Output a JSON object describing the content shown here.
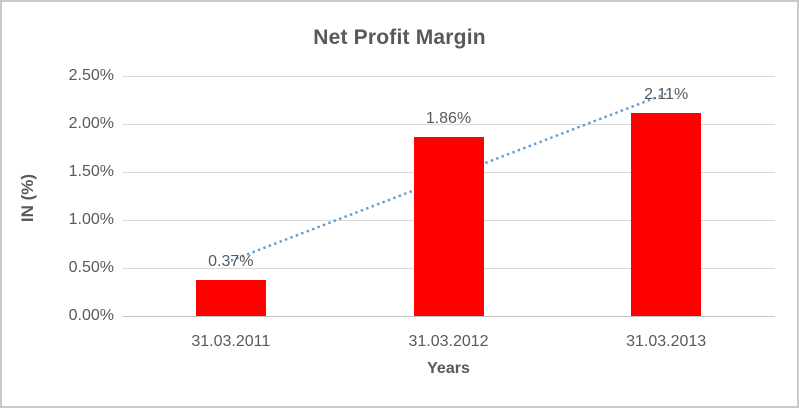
{
  "chart_data": {
    "type": "bar",
    "title": "Net Profit Margin",
    "xlabel": "Years",
    "ylabel": "IN (%)",
    "categories": [
      "31.03.2011",
      "31.03.2012",
      "31.03.2013"
    ],
    "series": [
      {
        "name": "Net Profit Margin",
        "values": [
          0.37,
          1.86,
          2.11
        ],
        "data_labels": [
          "0.37%",
          "1.86%",
          "2.11%"
        ]
      }
    ],
    "ylim": [
      0,
      2.5
    ],
    "ytick_values": [
      0,
      0.5,
      1.0,
      1.5,
      2.0,
      2.5
    ],
    "ytick_labels": [
      "0.00%",
      "0.50%",
      "1.00%",
      "1.50%",
      "2.00%",
      "2.50%"
    ],
    "grid": true,
    "legend": "none",
    "trendline": {
      "type": "linear",
      "style": "dotted"
    },
    "colors": {
      "bar": "#ff0000",
      "trendline": "#5b9bd5",
      "text": "#595959",
      "gridline": "#d9d9d9",
      "axis_line": "#c6c6c6",
      "frame_border": "#c9c9c9",
      "background": "#ffffff"
    }
  }
}
